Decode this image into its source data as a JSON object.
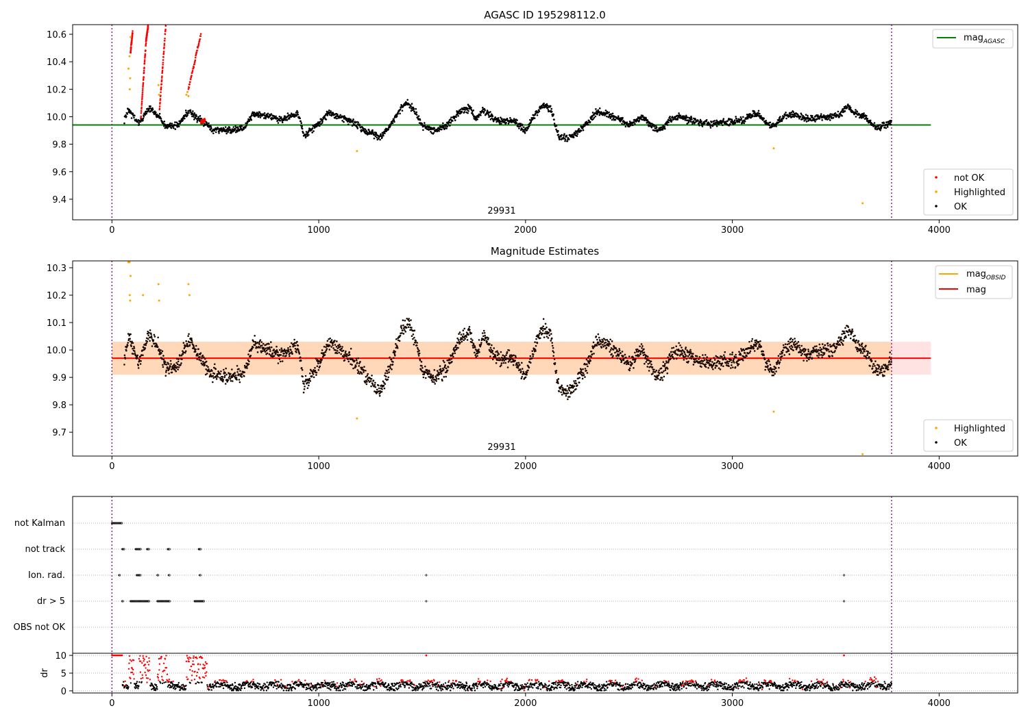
{
  "panels": [
    {
      "title": "AGASC ID 195298112.0",
      "annotation": "29931",
      "xlim": [
        -190,
        4380
      ],
      "ylim": [
        9.25,
        10.67
      ],
      "xticks": [
        0,
        1000,
        2000,
        3000,
        4000
      ],
      "yticks": [
        9.4,
        9.6,
        9.8,
        10.0,
        10.2,
        10.4,
        10.6
      ],
      "ytick_labels": [
        "9.4",
        "9.6",
        "9.8",
        "10.0",
        "10.2",
        "10.4",
        "10.6"
      ],
      "legend_lines": [
        {
          "label": "mag",
          "subscript": "AGASC",
          "color": "#008000"
        }
      ],
      "legend_points": [
        {
          "label": "not OK",
          "color": "#ff0000"
        },
        {
          "label": "Highlighted",
          "color": "#ffa500"
        },
        {
          "label": "OK",
          "color": "#000000"
        }
      ]
    },
    {
      "title": "Magnitude Estimates",
      "annotation": "29931",
      "xlim": [
        -190,
        4380
      ],
      "ylim": [
        9.613,
        10.325
      ],
      "xticks": [
        0,
        1000,
        2000,
        3000,
        4000
      ],
      "yticks": [
        9.7,
        9.8,
        9.9,
        10.0,
        10.1,
        10.2,
        10.3
      ],
      "ytick_labels": [
        "9.7",
        "9.8",
        "9.9",
        "10.0",
        "10.1",
        "10.2",
        "10.3"
      ],
      "legend_lines": [
        {
          "label": "mag",
          "subscript": "OBSID",
          "color": "#ffa500"
        },
        {
          "label": "mag",
          "subscript": "",
          "color": "#ff0000"
        }
      ],
      "legend_points": [
        {
          "label": "Highlighted",
          "color": "#ffa500"
        },
        {
          "label": "OK",
          "color": "#000000"
        }
      ]
    },
    {
      "flag_labels": [
        "not Kalman",
        "not track",
        "Ion. rad.",
        "dr > 5",
        "OBS not OK"
      ],
      "dr_ylabel": "dr",
      "dr_yticks": [
        0,
        5,
        10
      ],
      "dr_ytick_labels": [
        "0",
        "5",
        "10"
      ],
      "xticks": [
        0,
        1000,
        2000,
        3000,
        4000
      ]
    }
  ],
  "chart_data": {
    "type": "scatter",
    "title": "AGASC ID 195298112.0",
    "subtitle": "Magnitude Estimates",
    "obsid": "29931",
    "time_range": [
      0,
      3770
    ],
    "agasc_mag": 9.94,
    "obsid_mag": 9.97,
    "mag": 9.97,
    "mag_band": [
      9.91,
      10.03
    ],
    "trend_x": [
      0,
      60,
      80,
      130,
      180,
      230,
      260,
      320,
      370,
      440,
      480,
      560,
      640,
      680,
      760,
      820,
      900,
      930,
      1000,
      1050,
      1100,
      1150,
      1200,
      1250,
      1300,
      1350,
      1400,
      1430,
      1470,
      1500,
      1560,
      1620,
      1680,
      1730,
      1760,
      1800,
      1850,
      1900,
      1950,
      2000,
      2030,
      2080,
      2120,
      2160,
      2200,
      2240,
      2270,
      2300,
      2340,
      2380,
      2420,
      2460,
      2500,
      2560,
      2600,
      2640,
      2680,
      2700,
      2740,
      2780,
      2840,
      2900,
      2960,
      3000,
      3060,
      3100,
      3130,
      3160,
      3200,
      3250,
      3300,
      3360,
      3420,
      3470,
      3520,
      3560,
      3600,
      3640,
      3680,
      3710,
      3770
    ],
    "trend_y": [
      9.97,
      9.97,
      10.05,
      9.95,
      10.06,
      10.0,
      9.93,
      9.94,
      10.04,
      9.96,
      9.91,
      9.9,
      9.92,
      10.02,
      10.0,
      9.98,
      10.02,
      9.86,
      9.95,
      10.03,
      10.0,
      9.97,
      9.93,
      9.88,
      9.85,
      9.95,
      10.07,
      10.1,
      10.03,
      9.93,
      9.9,
      9.94,
      10.03,
      10.07,
      9.98,
      10.05,
      9.98,
      9.97,
      9.96,
      9.9,
      9.98,
      10.08,
      10.06,
      9.86,
      9.84,
      9.87,
      9.92,
      9.95,
      10.03,
      10.03,
      10.0,
      9.98,
      9.94,
      10.0,
      9.95,
      9.9,
      9.94,
      9.98,
      10.0,
      9.98,
      9.96,
      9.95,
      9.96,
      9.96,
      9.98,
      10.02,
      10.02,
      9.95,
      9.93,
      10.0,
      10.02,
      9.98,
      10.0,
      10.0,
      10.02,
      10.08,
      10.02,
      10.0,
      9.94,
      9.92,
      9.96
    ],
    "not_ok_segments": [
      [
        90,
        100,
        10.47,
        10.62
      ],
      [
        140,
        165,
        10.0,
        10.55
      ],
      [
        165,
        175,
        10.55,
        10.66
      ],
      [
        230,
        260,
        10.05,
        10.66
      ],
      [
        370,
        430,
        10.2,
        10.6
      ],
      [
        430,
        450,
        9.96,
        9.98
      ]
    ],
    "highlighted_points": [
      [
        80,
        10.35
      ],
      [
        85,
        10.44
      ],
      [
        90,
        10.58
      ],
      [
        86,
        10.2
      ],
      [
        88,
        10.28
      ],
      [
        225,
        10.23
      ],
      [
        228,
        10.16
      ],
      [
        360,
        10.16
      ],
      [
        365,
        10.18
      ],
      [
        370,
        10.15
      ],
      [
        1185,
        9.75
      ],
      [
        3200,
        9.77
      ],
      [
        3630,
        9.37
      ]
    ],
    "highlighted_points_obsid": [
      [
        80,
        10.32
      ],
      [
        85,
        10.32
      ],
      [
        90,
        10.27
      ],
      [
        86,
        10.2
      ],
      [
        88,
        10.18
      ],
      [
        150,
        10.2
      ],
      [
        225,
        10.24
      ],
      [
        228,
        10.18
      ],
      [
        370,
        10.24
      ],
      [
        375,
        10.2
      ],
      [
        1185,
        9.75
      ],
      [
        3200,
        9.775
      ],
      [
        3630,
        9.62
      ]
    ],
    "flags": {
      "not Kalman": [
        [
          0,
          50
        ]
      ],
      "not track": [
        [
          50,
          60
        ],
        [
          115,
          140
        ],
        [
          170,
          180
        ],
        [
          270,
          280
        ],
        [
          420,
          430
        ]
      ],
      "Ion. rad.": [
        [
          35,
          40
        ],
        [
          120,
          140
        ],
        [
          220,
          225
        ],
        [
          275,
          280
        ],
        [
          425,
          430
        ],
        [
          1520,
          1522
        ],
        [
          3540,
          3542
        ]
      ],
      "dr > 5": [
        [
          50,
          55
        ],
        [
          90,
          180
        ],
        [
          220,
          280
        ],
        [
          400,
          445
        ],
        [
          1520,
          1522
        ],
        [
          3540,
          3542
        ]
      ],
      "OBS not OK": []
    },
    "dr_ylim": [
      0,
      10
    ]
  }
}
